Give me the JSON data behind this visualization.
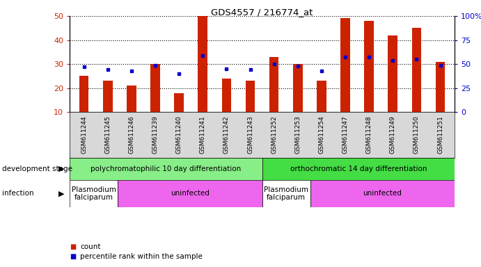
{
  "title": "GDS4557 / 216774_at",
  "samples": [
    "GSM611244",
    "GSM611245",
    "GSM611246",
    "GSM611239",
    "GSM611240",
    "GSM611241",
    "GSM611242",
    "GSM611243",
    "GSM611252",
    "GSM611253",
    "GSM611254",
    "GSM611247",
    "GSM611248",
    "GSM611249",
    "GSM611250",
    "GSM611251"
  ],
  "counts": [
    25,
    23,
    21,
    30,
    18,
    50,
    24,
    23,
    33,
    30,
    23,
    49,
    48,
    42,
    45,
    31
  ],
  "percentiles": [
    47,
    44,
    43,
    49,
    40,
    59,
    45,
    44,
    50,
    48,
    43,
    57,
    57,
    54,
    55,
    49
  ],
  "bar_color": "#cc2200",
  "dot_color": "#0000cc",
  "ylim_left": [
    10,
    50
  ],
  "ylim_right": [
    0,
    100
  ],
  "yticks_left": [
    10,
    20,
    30,
    40,
    50
  ],
  "yticks_right": [
    0,
    25,
    50,
    75,
    100
  ],
  "yticklabels_right": [
    "0",
    "25",
    "50",
    "75",
    "100%"
  ],
  "dev_stage_groups": [
    {
      "label": "polychromatophilic 10 day differentiation",
      "start": 0,
      "end": 8,
      "color": "#88ee88"
    },
    {
      "label": "orthochromatic 14 day differentiation",
      "start": 8,
      "end": 16,
      "color": "#44dd44"
    }
  ],
  "infection_groups": [
    {
      "label": "Plasmodium\nfalciparum",
      "start": 0,
      "end": 2,
      "color": "#ffffff"
    },
    {
      "label": "uninfected",
      "start": 2,
      "end": 8,
      "color": "#ee66ee"
    },
    {
      "label": "Plasmodium\nfalciparum",
      "start": 8,
      "end": 10,
      "color": "#ffffff"
    },
    {
      "label": "uninfected",
      "start": 10,
      "end": 16,
      "color": "#ee66ee"
    }
  ],
  "legend_count_color": "#cc2200",
  "legend_dot_color": "#0000cc",
  "background_color": "#ffffff",
  "plot_bg_color": "#ffffff",
  "xtick_bg_color": "#d8d8d8"
}
